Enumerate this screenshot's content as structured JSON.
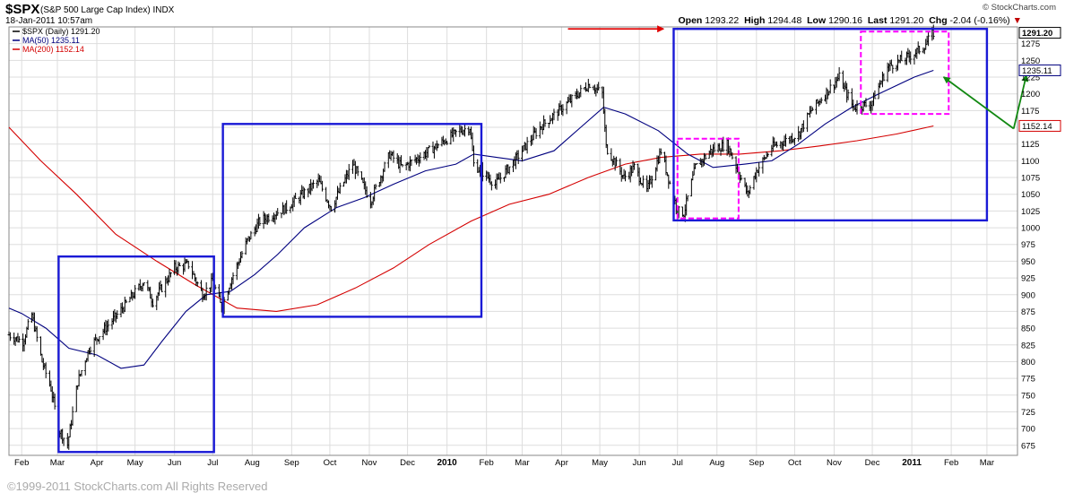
{
  "header": {
    "symbol": "$SPX",
    "description": "(S&P 500 Large Cap Index)",
    "exchange": "INDX",
    "datetime": "18-Jan-2011 10:57am",
    "brand": "© StockCharts.com",
    "open_label": "Open",
    "open": "1293.22",
    "high_label": "High",
    "high": "1294.48",
    "low_label": "Low",
    "low": "1290.16",
    "last_label": "Last",
    "last": "1291.20",
    "chg_label": "Chg",
    "chg": "-2.04 (-0.16%)"
  },
  "footer": {
    "copyright": "©1999-2011 StockCharts.com All Rights Reserved"
  },
  "colors": {
    "price": "#000000",
    "ma50": "#00007f",
    "ma200": "#d40000",
    "box": "#1a1ad6",
    "dashed_box": "#ff00ff",
    "arrow_red": "#e00000",
    "arrow_green": "#118811",
    "grid": "#dddddd"
  },
  "chart_data": {
    "type": "line",
    "ylim": [
      660,
      1300
    ],
    "y_ticks": [
      675,
      700,
      725,
      750,
      775,
      800,
      825,
      850,
      875,
      900,
      925,
      950,
      975,
      1000,
      1025,
      1050,
      1075,
      1100,
      1125,
      1150,
      1175,
      1200,
      1225,
      1250,
      1275
    ],
    "x_ticks": [
      "Feb",
      "Mar",
      "Apr",
      "May",
      "Jun",
      "Jul",
      "Aug",
      "Sep",
      "Oct",
      "Nov",
      "Dec",
      "2010",
      "Feb",
      "Mar",
      "Apr",
      "May",
      "Jun",
      "Jul",
      "Aug",
      "Sep",
      "Oct",
      "Nov",
      "Dec",
      "2011",
      "Feb",
      "Mar"
    ],
    "x_domain": [
      "2009-01-22",
      "2011-03-25"
    ],
    "legend": [
      {
        "label": "$SPX (Daily) 1291.20",
        "color": "#000000"
      },
      {
        "label": "MA(50) 1235.11",
        "color": "#00007f"
      },
      {
        "label": "MA(200) 1152.14",
        "color": "#d40000"
      }
    ],
    "last_labels": [
      {
        "text": "1291.20",
        "value": 1291.2,
        "bold": true,
        "color": "#000000"
      },
      {
        "text": "1235.11",
        "value": 1235.11,
        "bold": false,
        "color": "#00007f"
      },
      {
        "text": "1152.14",
        "value": 1152.14,
        "bold": false,
        "color": "#d40000"
      }
    ],
    "series": [
      {
        "name": "$SPX (Daily) 1291.20",
        "kind": "ohlc",
        "anchors": [
          [
            "2009-01-22",
            840
          ],
          [
            "2009-02-02",
            830
          ],
          [
            "2009-02-09",
            870
          ],
          [
            "2009-02-17",
            800
          ],
          [
            "2009-02-24",
            760
          ],
          [
            "2009-03-02",
            700
          ],
          [
            "2009-03-09",
            676
          ],
          [
            "2009-03-17",
            770
          ],
          [
            "2009-03-26",
            820
          ],
          [
            "2009-04-03",
            840
          ],
          [
            "2009-04-17",
            870
          ],
          [
            "2009-05-08",
            920
          ],
          [
            "2009-05-15",
            890
          ],
          [
            "2009-06-01",
            940
          ],
          [
            "2009-06-12",
            945
          ],
          [
            "2009-06-23",
            900
          ],
          [
            "2009-07-01",
            920
          ],
          [
            "2009-07-08",
            880
          ],
          [
            "2009-07-15",
            920
          ],
          [
            "2009-07-28",
            980
          ],
          [
            "2009-08-07",
            1010
          ],
          [
            "2009-08-28",
            1030
          ],
          [
            "2009-09-22",
            1070
          ],
          [
            "2009-10-02",
            1030
          ],
          [
            "2009-10-19",
            1095
          ],
          [
            "2009-11-02",
            1040
          ],
          [
            "2009-11-17",
            1110
          ],
          [
            "2009-11-27",
            1090
          ],
          [
            "2009-12-14",
            1110
          ],
          [
            "2010-01-11",
            1145
          ],
          [
            "2010-01-19",
            1150
          ],
          [
            "2010-01-22",
            1095
          ],
          [
            "2010-02-08",
            1065
          ],
          [
            "2010-02-25",
            1105
          ],
          [
            "2010-03-15",
            1150
          ],
          [
            "2010-04-05",
            1185
          ],
          [
            "2010-04-23",
            1215
          ],
          [
            "2010-05-03",
            1200
          ],
          [
            "2010-05-06",
            1120
          ],
          [
            "2010-05-20",
            1075
          ],
          [
            "2010-05-28",
            1090
          ],
          [
            "2010-06-07",
            1055
          ],
          [
            "2010-06-18",
            1115
          ],
          [
            "2010-07-01",
            1025
          ],
          [
            "2010-07-06",
            1022
          ],
          [
            "2010-07-15",
            1090
          ],
          [
            "2010-07-27",
            1115
          ],
          [
            "2010-08-09",
            1125
          ],
          [
            "2010-08-25",
            1050
          ],
          [
            "2010-09-01",
            1085
          ],
          [
            "2010-09-13",
            1120
          ],
          [
            "2010-10-04",
            1140
          ],
          [
            "2010-10-14",
            1175
          ],
          [
            "2010-11-05",
            1225
          ],
          [
            "2010-11-16",
            1180
          ],
          [
            "2010-11-30",
            1185
          ],
          [
            "2010-12-13",
            1240
          ],
          [
            "2010-12-31",
            1257
          ],
          [
            "2011-01-10",
            1270
          ],
          [
            "2011-01-18",
            1291
          ]
        ]
      },
      {
        "name": "MA(50) 1235.11",
        "points": [
          [
            "2009-01-22",
            880
          ],
          [
            "2009-02-01",
            872
          ],
          [
            "2009-02-20",
            850
          ],
          [
            "2009-03-10",
            820
          ],
          [
            "2009-04-01",
            810
          ],
          [
            "2009-04-20",
            790
          ],
          [
            "2009-05-08",
            795
          ],
          [
            "2009-05-22",
            830
          ],
          [
            "2009-06-10",
            875
          ],
          [
            "2009-06-26",
            900
          ],
          [
            "2009-07-15",
            905
          ],
          [
            "2009-08-03",
            930
          ],
          [
            "2009-08-21",
            960
          ],
          [
            "2009-09-11",
            1000
          ],
          [
            "2009-10-06",
            1030
          ],
          [
            "2009-10-28",
            1045
          ],
          [
            "2009-11-20",
            1065
          ],
          [
            "2009-12-15",
            1085
          ],
          [
            "2010-01-08",
            1095
          ],
          [
            "2010-01-22",
            1110
          ],
          [
            "2010-02-09",
            1105
          ],
          [
            "2010-03-01",
            1100
          ],
          [
            "2010-03-26",
            1115
          ],
          [
            "2010-04-16",
            1150
          ],
          [
            "2010-05-04",
            1180
          ],
          [
            "2010-05-21",
            1170
          ],
          [
            "2010-06-16",
            1145
          ],
          [
            "2010-07-09",
            1110
          ],
          [
            "2010-07-29",
            1090
          ],
          [
            "2010-08-23",
            1095
          ],
          [
            "2010-09-13",
            1100
          ],
          [
            "2010-10-04",
            1125
          ],
          [
            "2010-10-25",
            1155
          ],
          [
            "2010-11-15",
            1180
          ],
          [
            "2010-12-06",
            1200
          ],
          [
            "2011-01-03",
            1225
          ],
          [
            "2011-01-18",
            1235
          ]
        ]
      },
      {
        "name": "MA(200) 1152.14",
        "points": [
          [
            "2009-01-22",
            1150
          ],
          [
            "2009-02-16",
            1100
          ],
          [
            "2009-03-16",
            1050
          ],
          [
            "2009-04-16",
            990
          ],
          [
            "2009-05-18",
            950
          ],
          [
            "2009-06-17",
            915
          ],
          [
            "2009-07-20",
            880
          ],
          [
            "2009-08-20",
            875
          ],
          [
            "2009-09-21",
            885
          ],
          [
            "2009-10-21",
            910
          ],
          [
            "2009-11-20",
            940
          ],
          [
            "2009-12-18",
            975
          ],
          [
            "2010-01-20",
            1010
          ],
          [
            "2010-02-19",
            1035
          ],
          [
            "2010-03-22",
            1050
          ],
          [
            "2010-04-22",
            1075
          ],
          [
            "2010-05-21",
            1095
          ],
          [
            "2010-06-18",
            1105
          ],
          [
            "2010-07-19",
            1110
          ],
          [
            "2010-08-19",
            1110
          ],
          [
            "2010-09-20",
            1115
          ],
          [
            "2010-10-20",
            1122
          ],
          [
            "2010-11-19",
            1130
          ],
          [
            "2010-12-20",
            1140
          ],
          [
            "2011-01-18",
            1152
          ]
        ]
      }
    ],
    "annotations": {
      "boxes": [
        {
          "from": "2009-03-02",
          "to": "2009-07-02",
          "ymin": 665,
          "ymax": 957,
          "style": "solid"
        },
        {
          "from": "2009-07-09",
          "to": "2010-01-28",
          "ymin": 867,
          "ymax": 1155,
          "style": "solid"
        },
        {
          "from": "2010-06-28",
          "to": "2011-03-01",
          "ymin": 1011,
          "ymax": 1297,
          "style": "solid"
        },
        {
          "from": "2010-07-01",
          "to": "2010-08-18",
          "ymin": 1014,
          "ymax": 1133,
          "style": "dashed"
        },
        {
          "from": "2010-11-22",
          "to": "2011-01-30",
          "ymin": 1170,
          "ymax": 1293,
          "style": "dashed"
        }
      ],
      "arrows": [
        {
          "from": [
            "2010-04-06",
            1297
          ],
          "to": [
            "2010-06-20",
            1297
          ],
          "color": "red"
        },
        {
          "from": [
            "2011-03-22",
            1148
          ],
          "to": [
            "2011-01-26",
            1225
          ],
          "color": "green"
        },
        {
          "from": [
            "2011-03-22",
            1148
          ],
          "to": [
            "2011-04-01",
            1228
          ],
          "color": "green"
        }
      ]
    }
  }
}
